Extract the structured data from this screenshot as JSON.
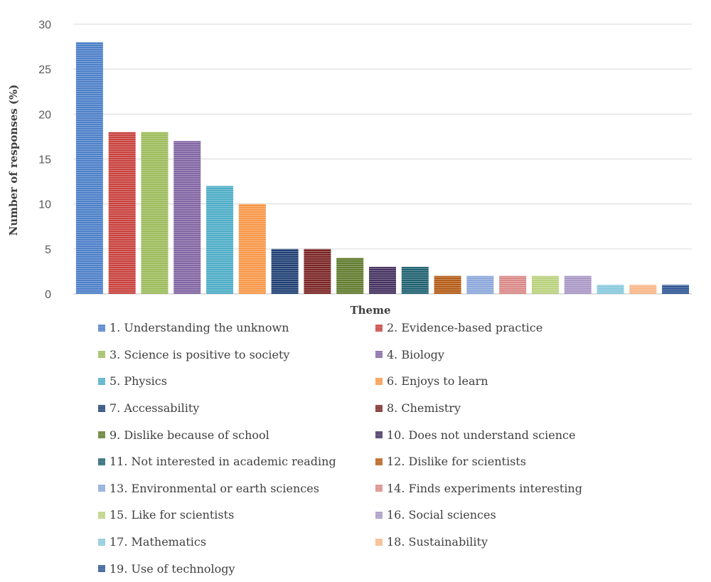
{
  "chart_data": {
    "type": "bar",
    "xlabel": "Theme",
    "ylabel": "Number of responses (%)",
    "ylim": [
      0,
      30
    ],
    "yticks": [
      0,
      5,
      10,
      15,
      20,
      25,
      30
    ],
    "grid": "horizontal",
    "legend": "bottom",
    "categories": [
      "1. Understanding the unknown",
      "2. Evidence-based practice",
      "3. Science is positive to society",
      "4. Biology",
      "5. Physics",
      "6. Enjoys to learn",
      "7. Accessability",
      "8. Chemistry",
      "9. Dislike because of school",
      "10. Does not understand science",
      "11. Not interested in academic reading",
      "12. Dislike for scientists",
      "13. Environmental or earth sciences",
      "14. Finds experiments interesting",
      "15. Like for scientists",
      "16. Social sciences",
      "17. Mathematics",
      "18. Sustainability",
      "19. Use of technology"
    ],
    "values": [
      28,
      18,
      18,
      17,
      12,
      10,
      5,
      5,
      4,
      3,
      3,
      2,
      2,
      2,
      2,
      2,
      1,
      1,
      1
    ],
    "colors": [
      "#4a7ec8",
      "#c8403c",
      "#9bbb59",
      "#8064a2",
      "#4bacc6",
      "#f79646",
      "#1f3f73",
      "#7a2424",
      "#5f7a2c",
      "#43305f",
      "#1e6070",
      "#b35a14",
      "#8aa6da",
      "#d98886",
      "#b9d17c",
      "#a896c4",
      "#86c8dc",
      "#f8b585",
      "#2c5592"
    ]
  }
}
